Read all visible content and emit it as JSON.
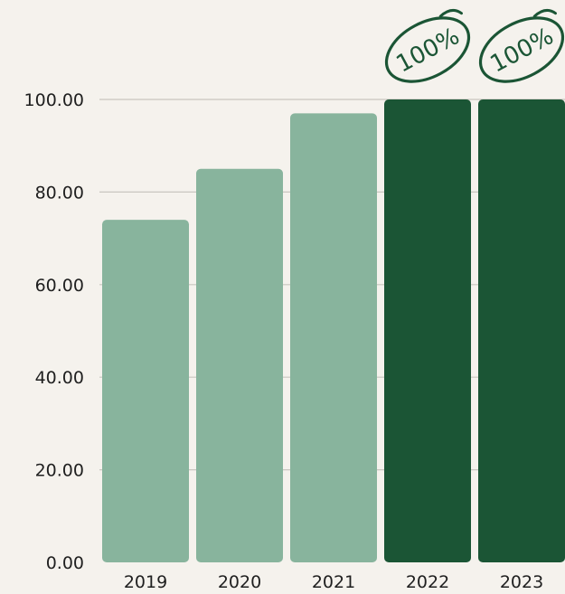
{
  "chart_data": {
    "type": "bar",
    "categories": [
      "2019",
      "2020",
      "2021",
      "2022",
      "2023"
    ],
    "values": [
      74,
      85,
      97,
      100,
      100
    ],
    "ylim": [
      0,
      100
    ],
    "yticks": [
      "0.00",
      "20.00",
      "40.00",
      "60.00",
      "80.00",
      "100.00"
    ],
    "grid": true,
    "bar_colors": [
      "#88b49d",
      "#88b49d",
      "#88b49d",
      "#1b5535",
      "#1b5535"
    ],
    "annotations": [
      {
        "category": "2022",
        "text": "100%"
      },
      {
        "category": "2023",
        "text": "100%"
      }
    ],
    "colors": {
      "background": "#f5f2ed",
      "gridline": "#c9c6c0",
      "light_bar": "#88b49d",
      "dark_bar": "#1b5535",
      "text": "#1f1f1f"
    }
  }
}
